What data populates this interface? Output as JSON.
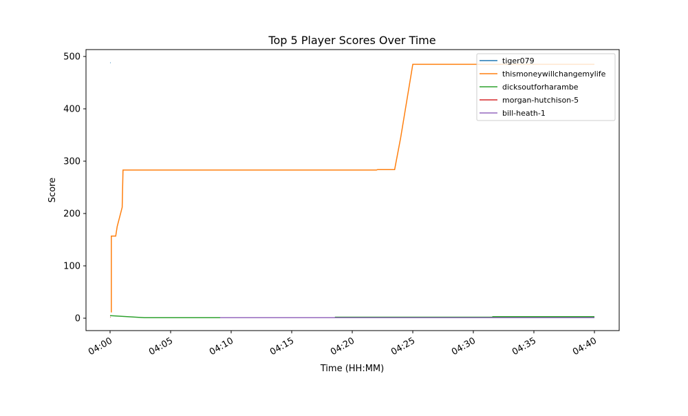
{
  "chart_data": {
    "type": "line",
    "title": "Top 5 Player Scores Over Time",
    "xlabel": "Time (HH:MM)",
    "ylabel": "Score",
    "xlim": [
      "03:58:00",
      "04:42:00"
    ],
    "ylim": [
      -23,
      511
    ],
    "x_ticks": [
      "04:00",
      "04:05",
      "04:10",
      "04:15",
      "04:20",
      "04:25",
      "04:30",
      "04:35",
      "04:40"
    ],
    "y_ticks": [
      0,
      100,
      200,
      300,
      400,
      500
    ],
    "grid": false,
    "legend_position": "top-right",
    "series": [
      {
        "name": "tiger079",
        "color": "#1f77b4",
        "x": [
          "04:00:00",
          "04:00:02"
        ],
        "y": [
          488,
          488
        ]
      },
      {
        "name": "thismoneywillchangemylife",
        "color": "#ff7f0e",
        "x": [
          "04:00:06",
          "04:00:06",
          "04:00:28",
          "04:00:35",
          "04:01:00",
          "04:01:04",
          "04:22:00",
          "04:22:05",
          "04:23:30",
          "04:24:00",
          "04:25:00",
          "04:40:00"
        ],
        "y": [
          11,
          157,
          157,
          175,
          212,
          283,
          283,
          284,
          284,
          345,
          485,
          485
        ]
      },
      {
        "name": "dicksoutforharambe",
        "color": "#2ca02c",
        "x": [
          "04:00:00",
          "04:02:50",
          "04:18:35",
          "04:18:36",
          "04:31:35",
          "04:31:36",
          "04:40:00"
        ],
        "y": [
          5,
          1,
          1,
          2,
          2,
          3,
          3
        ]
      },
      {
        "name": "morgan-hutchison-5",
        "color": "#d62728",
        "x": [
          "04:00:00",
          "04:00:02"
        ],
        "y": [
          2,
          2
        ]
      },
      {
        "name": "bill-heath-1",
        "color": "#9467bd",
        "x": [
          "04:09:05",
          "04:40:00"
        ],
        "y": [
          1,
          1
        ]
      }
    ]
  }
}
